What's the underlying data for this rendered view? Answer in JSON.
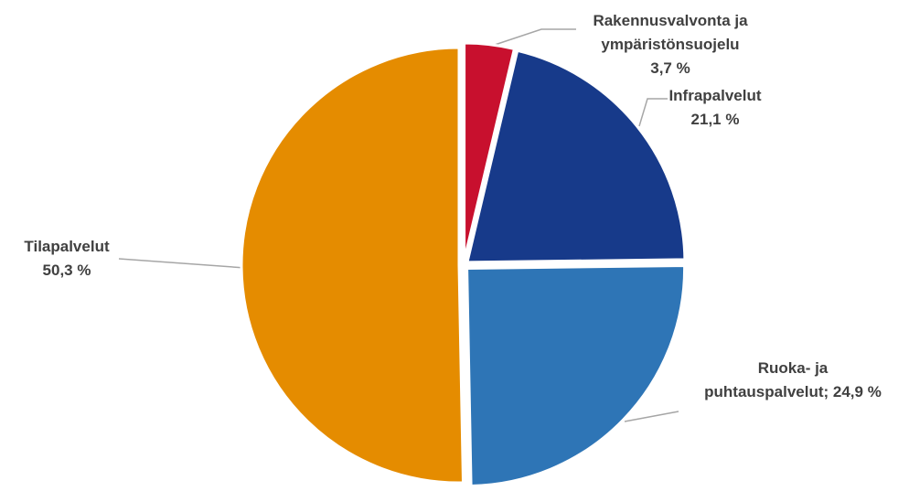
{
  "chart_data": {
    "type": "pie",
    "title": "",
    "slices": [
      {
        "label_lines": [
          "Rakennusvalvonta ja",
          "ympäristönsuojelu",
          "3,7 %"
        ],
        "value": 3.7,
        "color": "#c8102e"
      },
      {
        "label_lines": [
          "Infrapalvelut",
          "21,1 %"
        ],
        "value": 21.1,
        "color": "#173a8a"
      },
      {
        "label_lines": [
          "Ruoka- ja",
          "puhtauspalvelut; 24,9 %"
        ],
        "value": 24.9,
        "color": "#2e75b6"
      },
      {
        "label_lines": [
          "Tilapalvelut",
          "50,3 %"
        ],
        "value": 50.3,
        "color": "#e58c00"
      }
    ]
  }
}
